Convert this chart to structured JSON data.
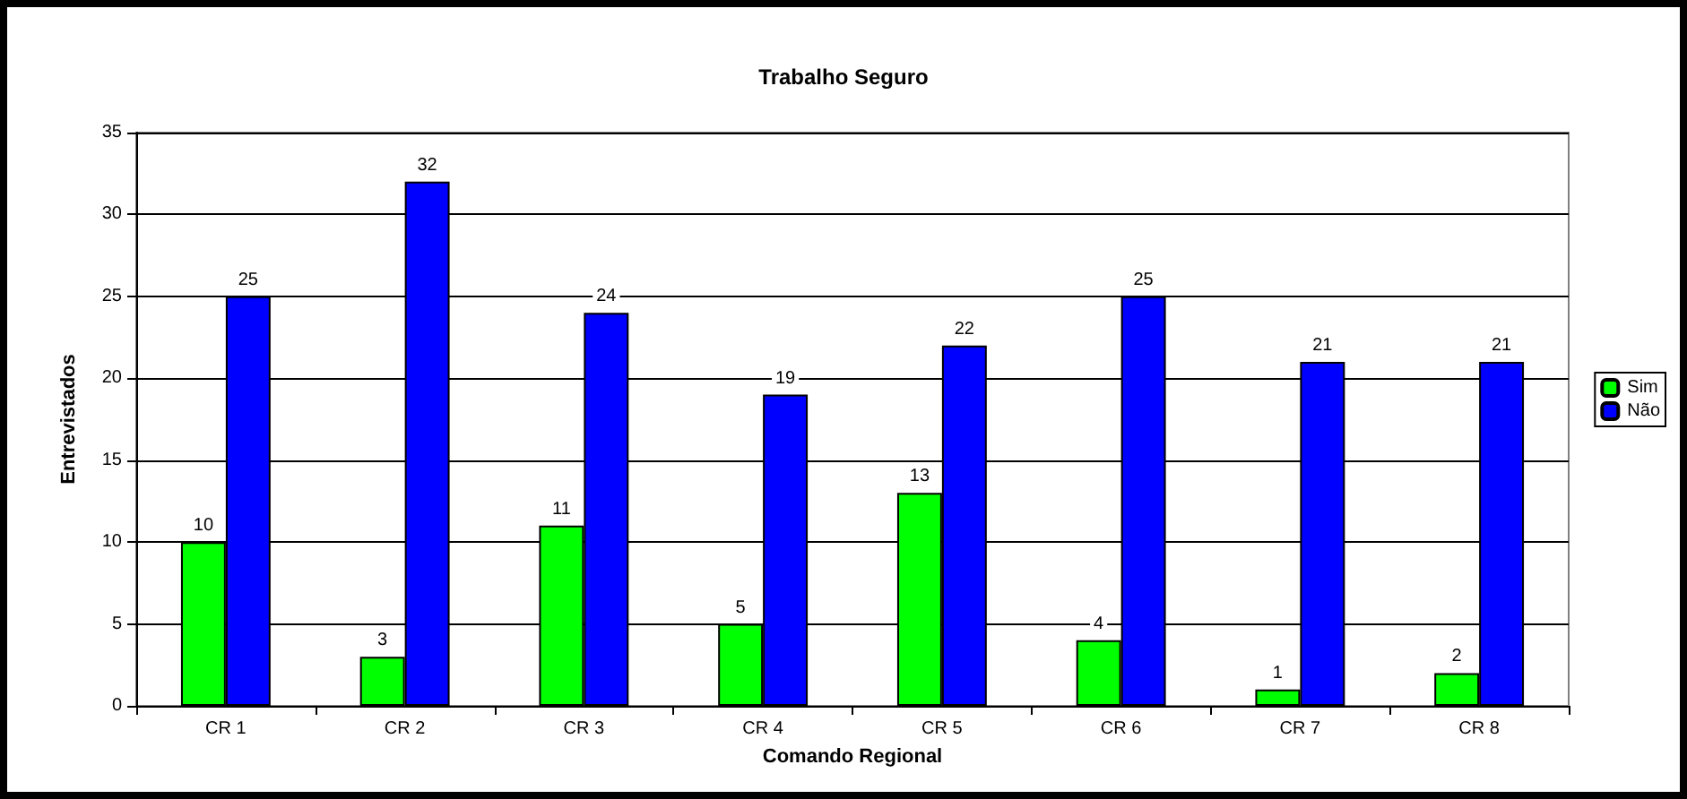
{
  "chart_data": {
    "type": "bar",
    "title": "Trabalho Seguro",
    "xlabel": "Comando Regional",
    "ylabel": "Entrevistados",
    "categories": [
      "CR 1",
      "CR 2",
      "CR 3",
      "CR 4",
      "CR 5",
      "CR 6",
      "CR 7",
      "CR 8"
    ],
    "series": [
      {
        "name": "Sim",
        "color": "#00ff00",
        "values": [
          10,
          3,
          11,
          5,
          13,
          4,
          1,
          2
        ]
      },
      {
        "name": "Não",
        "color": "#0000ff",
        "values": [
          25,
          32,
          24,
          19,
          22,
          25,
          21,
          21
        ]
      }
    ],
    "ylim": [
      0,
      35
    ],
    "yticks": [
      0,
      5,
      10,
      15,
      20,
      25,
      30,
      35
    ],
    "grid": "y",
    "legend": "right",
    "data_labels": true
  }
}
